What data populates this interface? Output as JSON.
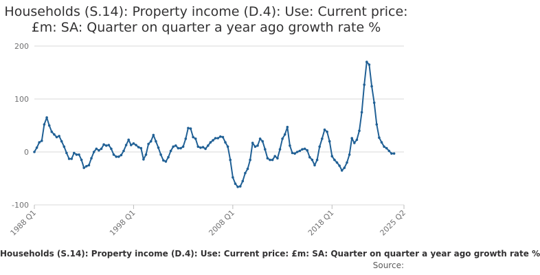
{
  "chart_data": {
    "type": "line",
    "title": "Households (S.14): Property income (D.4): Use: Current price: £m: SA: Quarter on quarter a year ago growth rate %",
    "xlabel": "",
    "ylabel": "",
    "ylim": [
      -100,
      200
    ],
    "yticks": [
      "200",
      "100",
      "0",
      "-100"
    ],
    "ytick_values": [
      200,
      100,
      0,
      -100
    ],
    "xticks": [
      "1988 Q1",
      "1998 Q1",
      "2008 Q1",
      "2018 Q1",
      "2025 Q2"
    ],
    "xtick_values": [
      1988.0,
      1998.0,
      2008.0,
      2018.0,
      2025.25
    ],
    "grid": true,
    "line_color": "#206095",
    "x_start": 1988.0,
    "x_step": 0.25,
    "series": [
      {
        "values": [
          0,
          8,
          18,
          21,
          52,
          65,
          50,
          38,
          33,
          28,
          30,
          20,
          10,
          -2,
          -13,
          -13,
          -2,
          -5,
          -5,
          -15,
          -30,
          -27,
          -25,
          -12,
          0,
          6,
          3,
          6,
          14,
          12,
          13,
          6,
          -5,
          -9,
          -9,
          -6,
          2,
          13,
          23,
          13,
          16,
          13,
          9,
          7,
          -14,
          -5,
          15,
          20,
          32,
          20,
          8,
          -5,
          -16,
          -18,
          -10,
          2,
          10,
          12,
          7,
          7,
          10,
          25,
          45,
          44,
          28,
          25,
          10,
          8,
          9,
          6,
          12,
          18,
          22,
          26,
          26,
          29,
          28,
          18,
          10,
          -15,
          -48,
          -60,
          -66,
          -65,
          -55,
          -40,
          -32,
          -15,
          17,
          10,
          12,
          25,
          20,
          5,
          -12,
          -15,
          -15,
          -8,
          -12,
          5,
          25,
          33,
          47,
          12,
          -2,
          -3,
          0,
          2,
          5,
          6,
          3,
          -10,
          -15,
          -25,
          -15,
          10,
          25,
          42,
          38,
          20,
          -8,
          -15,
          -20,
          -26,
          -35,
          -30,
          -20,
          -5,
          26,
          17,
          23,
          40,
          75,
          127,
          170,
          165,
          124,
          93,
          52,
          27,
          18,
          10,
          7,
          2,
          -3,
          -3
        ]
      }
    ]
  },
  "footer": {
    "series_label": "Households (S.14): Property income (D.4): Use: Current price: £m: SA: Quarter on quarter a year ago growth rate %",
    "source_label": "Source:"
  }
}
